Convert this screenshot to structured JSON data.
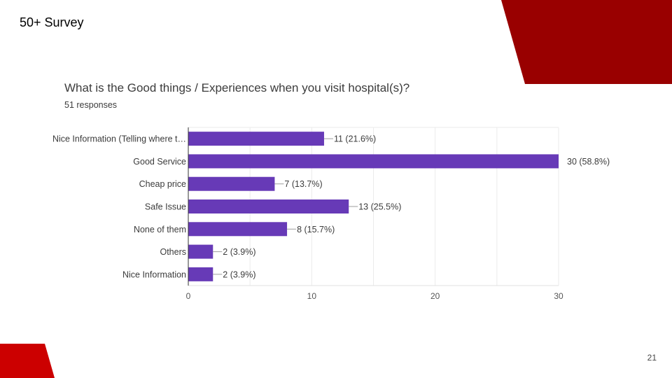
{
  "slide": {
    "title": "50+ Survey",
    "page_number": "21"
  },
  "colors": {
    "accent_dark_red": "#990000",
    "accent_red": "#cc0000",
    "bar": "#673ab7"
  },
  "chart_data": {
    "type": "bar",
    "orientation": "horizontal",
    "title": "What is the Good things / Experiences when you visit hospital(s)?",
    "subtitle": "51 responses",
    "categories": [
      "Nice Information (Telling where t…",
      "Good Service",
      "Cheap price",
      "Safe Issue",
      "None of them",
      "Others",
      "Nice Information"
    ],
    "values": [
      11,
      30,
      7,
      13,
      8,
      2,
      2
    ],
    "data_labels": [
      "11 (21.6%)",
      "30 (58.8%)",
      "7 (13.7%)",
      "13 (25.5%)",
      "8 (15.7%)",
      "2 (3.9%)",
      "2 (3.9%)"
    ],
    "xlim": [
      0,
      30
    ],
    "xticks": [
      0,
      10,
      20,
      30
    ],
    "grid": true
  }
}
